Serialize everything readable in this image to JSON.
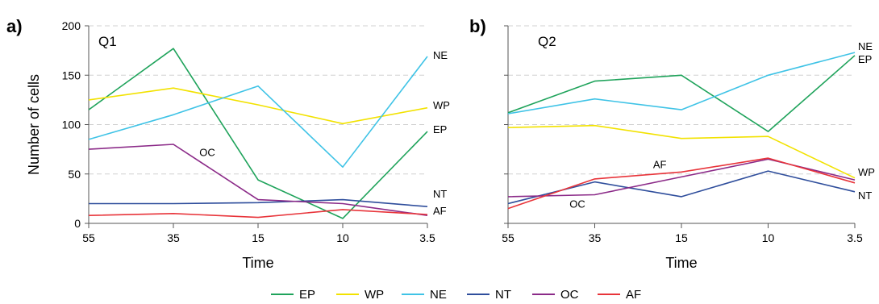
{
  "chart_data": [
    {
      "type": "line",
      "panel_label": "a)",
      "title": "Q1",
      "xlabel": "Time",
      "ylabel": "Number of cells",
      "categories": [
        "55",
        "35",
        "15",
        "10",
        "3.5"
      ],
      "ylim": [
        0,
        200
      ],
      "yticks": [
        "0",
        "50",
        "100",
        "150",
        "200"
      ],
      "grid": true,
      "series": [
        {
          "name": "EP",
          "color": "#1fa35b",
          "values": [
            115,
            177,
            44,
            5,
            93
          ]
        },
        {
          "name": "WP",
          "color": "#f2e200",
          "values": [
            125,
            137,
            120,
            101,
            117
          ]
        },
        {
          "name": "NE",
          "color": "#3fc3e6",
          "values": [
            85,
            110,
            139,
            57,
            169
          ]
        },
        {
          "name": "NT",
          "color": "#2f4e9c",
          "values": [
            20,
            20,
            21,
            24,
            17
          ]
        },
        {
          "name": "OC",
          "color": "#8b2a88",
          "values": [
            75,
            80,
            24,
            20,
            8
          ]
        },
        {
          "name": "AF",
          "color": "#e8343a",
          "values": [
            8,
            10,
            6,
            14,
            9
          ]
        }
      ],
      "end_labels": [
        "NE",
        "WP",
        "EP",
        "NT",
        "AF"
      ],
      "annotations": [
        {
          "text": "OC",
          "x": 1.4,
          "y": 68
        }
      ]
    },
    {
      "type": "line",
      "panel_label": "b)",
      "title": "Q2",
      "xlabel": "Time",
      "ylabel": "",
      "categories": [
        "55",
        "35",
        "15",
        "10",
        "3.5"
      ],
      "ylim": [
        0,
        200
      ],
      "yticks": [
        "",
        "",
        "",
        "",
        ""
      ],
      "grid": true,
      "series": [
        {
          "name": "EP",
          "color": "#1fa35b",
          "values": [
            112,
            144,
            150,
            93,
            170
          ]
        },
        {
          "name": "WP",
          "color": "#f2e200",
          "values": [
            97,
            99,
            86,
            88,
            46
          ]
        },
        {
          "name": "NE",
          "color": "#3fc3e6",
          "values": [
            111,
            126,
            115,
            150,
            173
          ]
        },
        {
          "name": "NT",
          "color": "#2f4e9c",
          "values": [
            20,
            42,
            27,
            53,
            32
          ]
        },
        {
          "name": "OC",
          "color": "#8b2a88",
          "values": [
            27,
            29,
            47,
            65,
            44
          ]
        },
        {
          "name": "AF",
          "color": "#e8343a",
          "values": [
            15,
            45,
            52,
            66,
            41
          ]
        }
      ],
      "end_labels": [
        "NE",
        "EP",
        "WP",
        "NT"
      ],
      "annotations": [
        {
          "text": "AF",
          "x": 1.75,
          "y": 56
        },
        {
          "text": "OC",
          "x": 0.8,
          "y": 16
        }
      ]
    }
  ],
  "legend": {
    "placement": "bottom-center",
    "items": [
      {
        "name": "EP",
        "color": "#1fa35b"
      },
      {
        "name": "WP",
        "color": "#f2e200"
      },
      {
        "name": "NE",
        "color": "#3fc3e6"
      },
      {
        "name": "NT",
        "color": "#2f4e9c"
      },
      {
        "name": "OC",
        "color": "#8b2a88"
      },
      {
        "name": "AF",
        "color": "#e8343a"
      }
    ]
  }
}
